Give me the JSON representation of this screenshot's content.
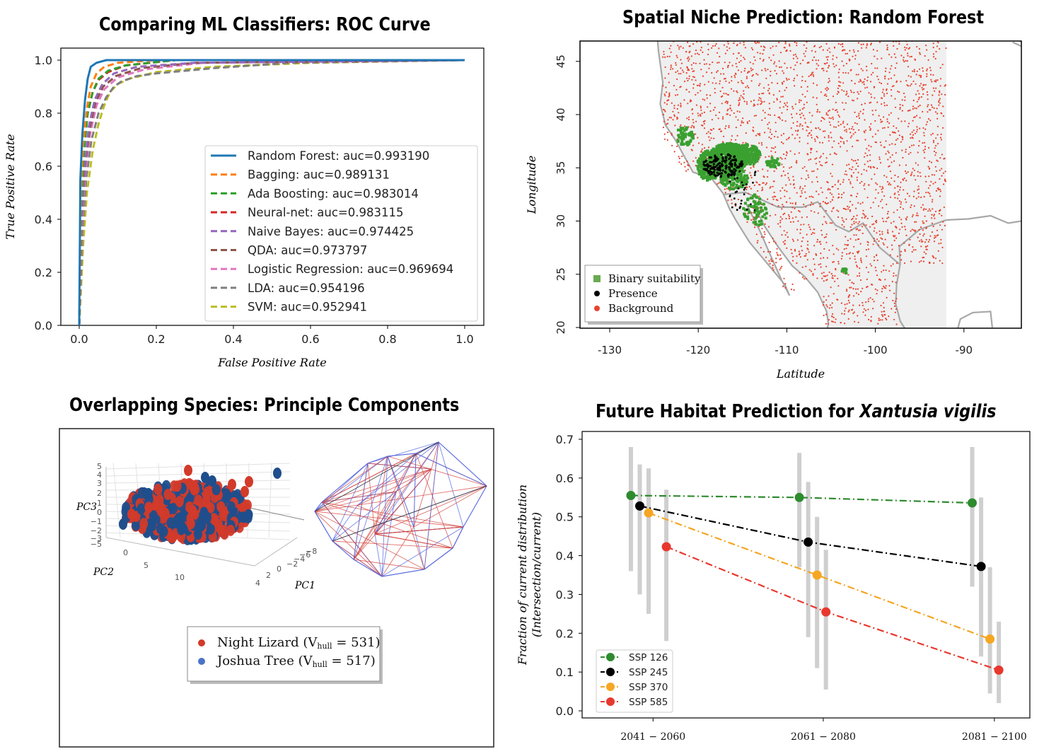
{
  "chart_data": [
    {
      "type": "line",
      "title": "Comparing ML Classifiers: ROC Curve",
      "xlabel": "False Positive Rate",
      "ylabel": "True Positive Rate",
      "xlim": [
        0,
        1
      ],
      "ylim": [
        0,
        1
      ],
      "xticks": [
        "0.0",
        "0.2",
        "0.4",
        "0.6",
        "0.8",
        "1.0"
      ],
      "yticks": [
        "0.0",
        "0.2",
        "0.4",
        "0.6",
        "0.8",
        "1.0"
      ],
      "grid": false,
      "legend_position": "lower-right",
      "series": [
        {
          "name": "Random Forest: auc=0.993190",
          "color": "#1f77b4",
          "dashed": false,
          "x": [
            0,
            0.003,
            0.008,
            0.015,
            0.022,
            0.03,
            0.045,
            0.07,
            0.12,
            1.0
          ],
          "y": [
            0,
            0.55,
            0.72,
            0.85,
            0.93,
            0.975,
            0.99,
            1.0,
            1.0,
            1.0
          ]
        },
        {
          "name": "Bagging: auc=0.989131",
          "color": "#ff7f0e",
          "dashed": true,
          "x": [
            0,
            0.004,
            0.01,
            0.02,
            0.03,
            0.045,
            0.065,
            0.1,
            0.2,
            1.0
          ],
          "y": [
            0,
            0.5,
            0.68,
            0.82,
            0.9,
            0.95,
            0.975,
            0.99,
            1.0,
            1.0
          ]
        },
        {
          "name": "Ada Boosting: auc=0.983014",
          "color": "#2ca02c",
          "dashed": true,
          "x": [
            0,
            0.005,
            0.012,
            0.022,
            0.035,
            0.05,
            0.075,
            0.12,
            0.25,
            1.0
          ],
          "y": [
            0,
            0.45,
            0.65,
            0.8,
            0.88,
            0.93,
            0.96,
            0.98,
            1.0,
            1.0
          ]
        },
        {
          "name": "Neural-net: auc=0.983115",
          "color": "#d62728",
          "dashed": true,
          "x": [
            0,
            0.005,
            0.012,
            0.022,
            0.035,
            0.05,
            0.075,
            0.12,
            0.25,
            1.0
          ],
          "y": [
            0,
            0.46,
            0.66,
            0.8,
            0.88,
            0.925,
            0.955,
            0.98,
            1.0,
            1.0
          ]
        },
        {
          "name": "Naive Bayes: auc=0.974425",
          "color": "#9467bd",
          "dashed": true,
          "x": [
            0,
            0.006,
            0.014,
            0.025,
            0.04,
            0.06,
            0.09,
            0.15,
            0.3,
            1.0
          ],
          "y": [
            0,
            0.42,
            0.6,
            0.75,
            0.85,
            0.91,
            0.95,
            0.975,
            0.99,
            1.0
          ]
        },
        {
          "name": "QDA: auc=0.973797",
          "color": "#8c564b",
          "dashed": true,
          "x": [
            0,
            0.006,
            0.015,
            0.027,
            0.042,
            0.062,
            0.095,
            0.16,
            0.3,
            1.0
          ],
          "y": [
            0,
            0.4,
            0.6,
            0.74,
            0.84,
            0.9,
            0.94,
            0.97,
            0.99,
            1.0
          ]
        },
        {
          "name": "Logistic Regression: auc=0.969694",
          "color": "#e377c2",
          "dashed": true,
          "x": [
            0,
            0.007,
            0.016,
            0.028,
            0.045,
            0.065,
            0.1,
            0.17,
            0.32,
            1.0
          ],
          "y": [
            0,
            0.38,
            0.58,
            0.72,
            0.83,
            0.89,
            0.935,
            0.965,
            0.99,
            1.0
          ]
        },
        {
          "name": "LDA: auc=0.954196",
          "color": "#7f7f7f",
          "dashed": true,
          "x": [
            0,
            0.008,
            0.018,
            0.032,
            0.05,
            0.07,
            0.09,
            0.11,
            0.15,
            0.2,
            0.35,
            0.55,
            1.0
          ],
          "y": [
            0,
            0.35,
            0.55,
            0.7,
            0.8,
            0.86,
            0.9,
            0.92,
            0.94,
            0.95,
            0.97,
            0.99,
            1.0
          ]
        },
        {
          "name": "SVM: auc=0.952941",
          "color": "#bcbd22",
          "dashed": true,
          "x": [
            0,
            0.01,
            0.02,
            0.035,
            0.05,
            0.065,
            0.08,
            0.1,
            0.13,
            0.2,
            0.35,
            0.6,
            1.0
          ],
          "y": [
            0,
            0.3,
            0.5,
            0.66,
            0.76,
            0.83,
            0.88,
            0.91,
            0.93,
            0.955,
            0.975,
            0.99,
            1.0
          ]
        }
      ]
    },
    {
      "type": "scatter",
      "title": "Spatial Niche Prediction: Random Forest",
      "xlabel": "Latitude",
      "ylabel": "Longitude",
      "xlim": [
        -134,
        -83
      ],
      "ylim": [
        20,
        47
      ],
      "xticks": [
        "-130",
        "-120",
        "-110",
        "-100",
        "-90"
      ],
      "yticks": [
        "20",
        "25",
        "30",
        "35",
        "40",
        "45"
      ],
      "legend_position": "bottom-left",
      "series": [
        {
          "name": "Binary suitability",
          "color": "#2ca02c"
        },
        {
          "name": "Presence",
          "color": "#000000"
        },
        {
          "name": "Background",
          "color": "#e8432f"
        }
      ]
    },
    {
      "type": "scatter",
      "title": "Overlapping Species: Principle Components",
      "axis_labels": [
        "PC1",
        "PC2",
        "PC3"
      ],
      "pc3_ticks": [
        "5",
        "4",
        "3",
        "2",
        "1",
        "0",
        "−1",
        "−2",
        "−3",
        "−5"
      ],
      "pc2_ticks": [
        "0",
        "5",
        "10"
      ],
      "pc1_ticks": [
        "4",
        "2",
        "0",
        "−2",
        "−4",
        "−6",
        "−8"
      ],
      "series": [
        {
          "name": "Night Lizard",
          "color": "#d23a2a",
          "hull_volume": 531
        },
        {
          "name": "Joshua Tree",
          "color": "#1f4e8c",
          "hull_volume": 517
        }
      ],
      "legend_entries": [
        {
          "prefix": "Night Lizard (V",
          "sub": "hull",
          "suffix": " =  531)"
        },
        {
          "prefix": "Joshua Tree (V",
          "sub": "hull",
          "suffix": " =  517)"
        }
      ]
    },
    {
      "type": "line",
      "title_parts": [
        "Future Habitat Prediction for ",
        "Xantusia vigilis"
      ],
      "xlabel": "",
      "ylabel": "Fraction of current distribution (Intersection/current)",
      "categories": [
        "2041 − 2060",
        "2061 − 2080",
        "2081 − 2100"
      ],
      "ylim": [
        0,
        0.7
      ],
      "yticks": [
        "0.0",
        "0.1",
        "0.2",
        "0.3",
        "0.4",
        "0.5",
        "0.6",
        "0.7"
      ],
      "legend_position": "bottom-left",
      "series": [
        {
          "name": "SSP 126",
          "color": "#2e8b2e",
          "x": [
            1.95,
            3.85,
            5.8
          ],
          "y": [
            0.555,
            0.55,
            0.536
          ],
          "err_low": [
            0.36,
            0.37,
            0.32
          ],
          "err_high": [
            0.68,
            0.665,
            0.68
          ]
        },
        {
          "name": "SSP 245",
          "color": "#000000",
          "x": [
            2.05,
            3.95,
            5.9
          ],
          "y": [
            0.528,
            0.435,
            0.372
          ],
          "err_low": [
            0.3,
            0.19,
            0.14
          ],
          "err_high": [
            0.635,
            0.59,
            0.55
          ]
        },
        {
          "name": "SSP 370",
          "color": "#f5a623",
          "x": [
            2.15,
            4.05,
            6.0
          ],
          "y": [
            0.51,
            0.35,
            0.185
          ],
          "err_low": [
            0.25,
            0.11,
            0.045
          ],
          "err_high": [
            0.625,
            0.5,
            0.37
          ]
        },
        {
          "name": "SSP 585",
          "color": "#e8382e",
          "x": [
            2.35,
            4.15,
            6.1
          ],
          "y": [
            0.423,
            0.255,
            0.105
          ],
          "err_low": [
            0.18,
            0.055,
            0.02
          ],
          "err_high": [
            0.57,
            0.415,
            0.23
          ]
        }
      ]
    }
  ]
}
